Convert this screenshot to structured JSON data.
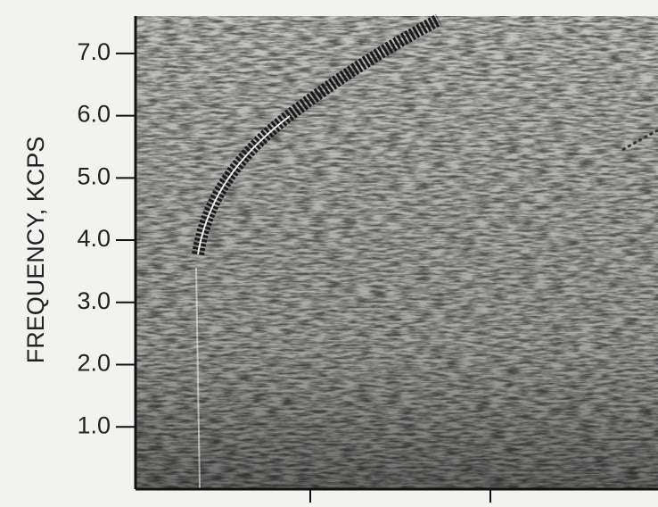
{
  "chart_data": {
    "type": "spectrogram",
    "ylabel": "FREQUENCY, KCPS",
    "ylim": [
      0,
      7.6
    ],
    "yticks": [
      {
        "value": 1,
        "label": "1.0"
      },
      {
        "value": 2,
        "label": "2.0"
      },
      {
        "value": 3,
        "label": "3.0"
      },
      {
        "value": 4,
        "label": "4.0"
      },
      {
        "value": 5,
        "label": "5.0"
      },
      {
        "value": 6,
        "label": "6.0"
      },
      {
        "value": 7,
        "label": "7.0"
      }
    ]
  }
}
